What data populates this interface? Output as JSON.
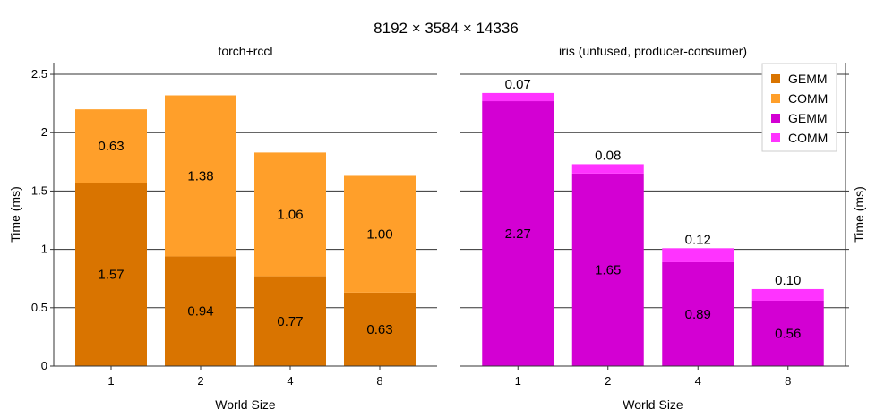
{
  "chart_data": {
    "type": "bar",
    "title": "8192 × 3584 × 14336",
    "xlabel": "World Size",
    "ylabel": "Time (ms)",
    "ylim": [
      0,
      2.6
    ],
    "yticks": [
      "0",
      "0.5",
      "1",
      "1.5",
      "2",
      "2.5"
    ],
    "grid": "horizontal",
    "legend_position": "top-right",
    "categories": [
      "1",
      "2",
      "4",
      "8"
    ],
    "panels": [
      {
        "subtitle": "torch+rccl",
        "series": [
          {
            "name": "GEMM",
            "color": "#d97400",
            "values": [
              1.57,
              0.94,
              0.77,
              0.63
            ],
            "labels": [
              "1.57",
              "0.94",
              "0.77",
              "0.63"
            ]
          },
          {
            "name": "COMM",
            "color": "#ff9f2a",
            "values": [
              0.63,
              1.38,
              1.06,
              1.0
            ],
            "labels": [
              "0.63",
              "1.38",
              "1.06",
              "1.00"
            ]
          }
        ]
      },
      {
        "subtitle": "iris (unfused, producer-consumer)",
        "series": [
          {
            "name": "GEMM",
            "color": "#d300d3",
            "values": [
              2.27,
              1.65,
              0.89,
              0.56
            ],
            "labels": [
              "2.27",
              "1.65",
              "0.89",
              "0.56"
            ]
          },
          {
            "name": "COMM",
            "color": "#ff33ff",
            "values": [
              0.07,
              0.08,
              0.12,
              0.1
            ],
            "labels": [
              "0.07",
              "0.08",
              "0.12",
              "0.10"
            ]
          }
        ]
      }
    ],
    "legend": [
      {
        "name": "GEMM",
        "color": "#d97400"
      },
      {
        "name": "COMM",
        "color": "#ff9f2a"
      },
      {
        "name": "GEMM",
        "color": "#d300d3"
      },
      {
        "name": "COMM",
        "color": "#ff33ff"
      }
    ]
  }
}
